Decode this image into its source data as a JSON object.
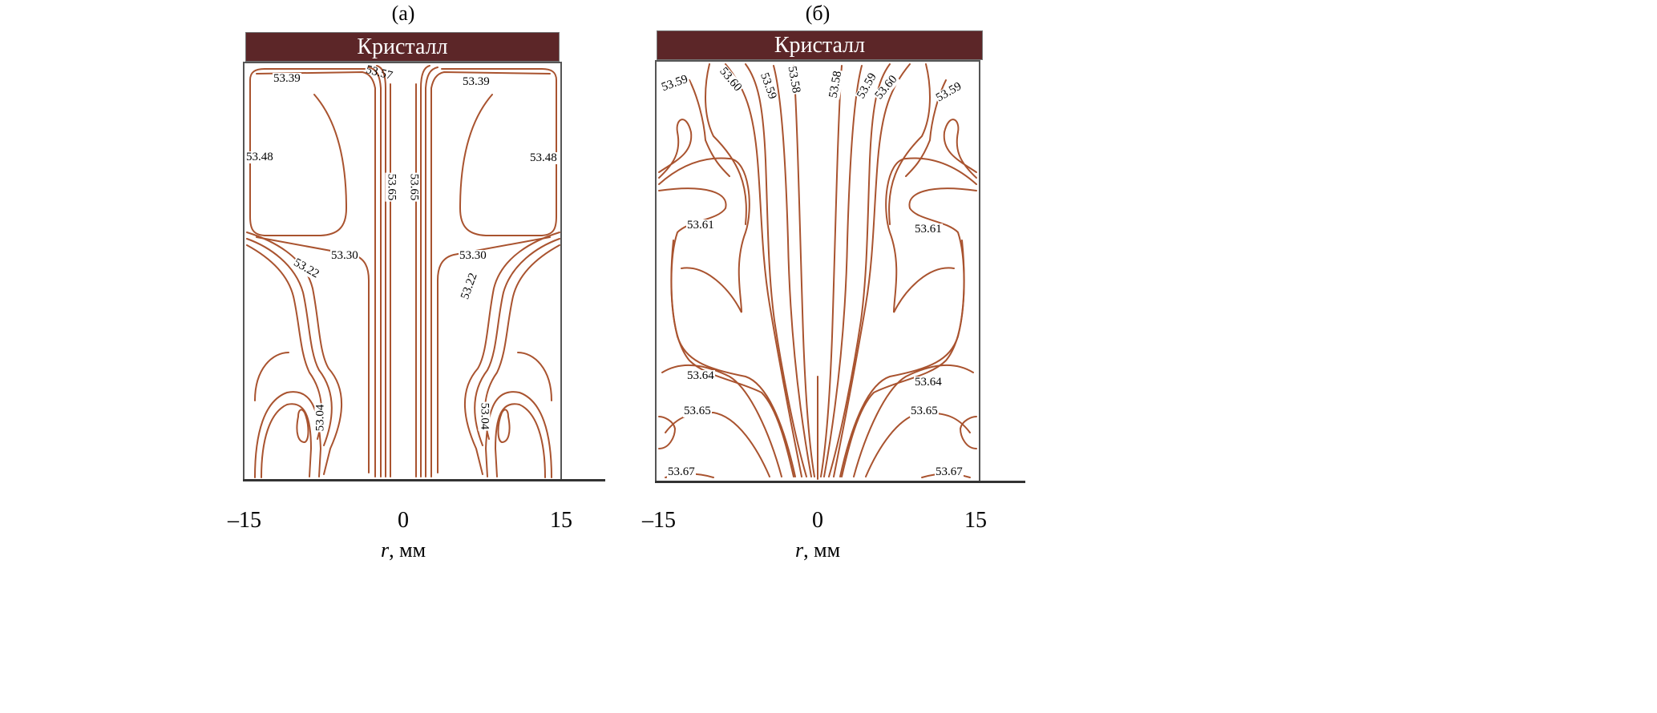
{
  "chart_data": {
    "type": "contour",
    "colors": {
      "contour": "#a9532f",
      "crystal": "#5c2628",
      "axis": "#333333"
    },
    "panels": [
      {
        "title": "(а)",
        "crystal_label": "Кристалл",
        "xlabel_var": "r",
        "xlabel_unit": ", мм",
        "xticks": [
          "–15",
          "0",
          "15"
        ],
        "xlim": [
          -15,
          15
        ],
        "contour_labels": [
          "53.39",
          "53.57",
          "53.65",
          "53.65",
          "53.39",
          "53.48",
          "53.48",
          "53.30",
          "53.30",
          "53.22",
          "53.22",
          "53.04",
          "53.04"
        ]
      },
      {
        "title": "(б)",
        "crystal_label": "Кристалл",
        "xlabel_var": "r",
        "xlabel_unit": ", мм",
        "xticks": [
          "–15",
          "0",
          "15"
        ],
        "xlim": [
          -15,
          15
        ],
        "contour_labels": [
          "53.59",
          "53.60",
          "53.59",
          "53.58",
          "53.58",
          "53.59",
          "53.60",
          "53.59",
          "53.61",
          "53.61",
          "53.64",
          "53.64",
          "53.65",
          "53.65",
          "53.67",
          "53.67"
        ]
      }
    ]
  }
}
